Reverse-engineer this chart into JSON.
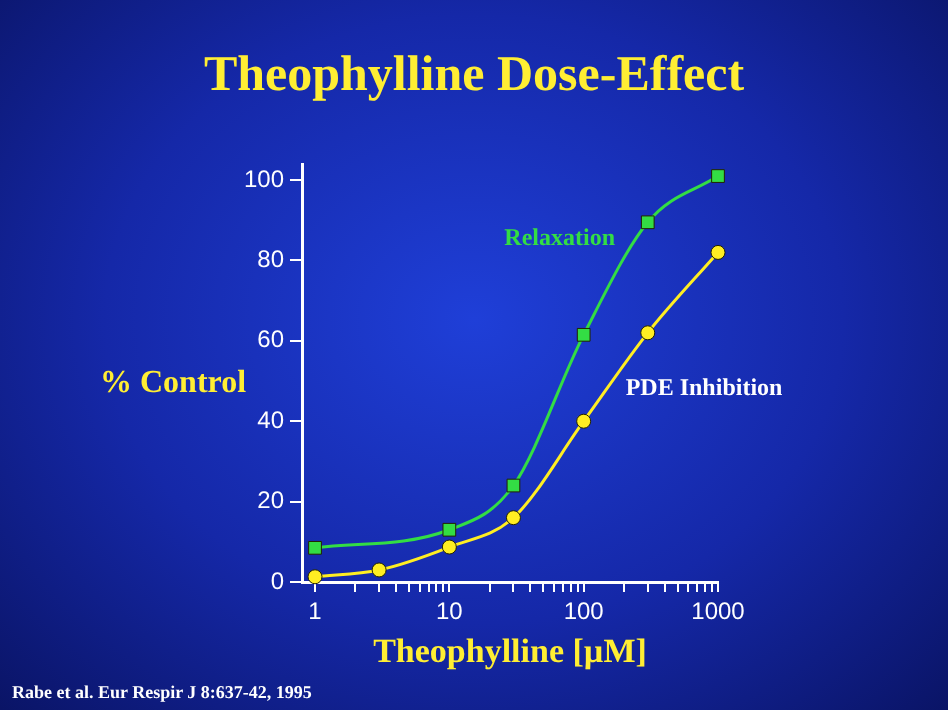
{
  "chart_data": {
    "type": "line",
    "title": "Theophylline Dose-Effect",
    "xlabel": "Theophylline [µM]",
    "ylabel": "% Control",
    "annotations": [
      "Rabe et al. Eur Respir J 8:637-42, 1995"
    ],
    "log": "x",
    "x": [
      1,
      3,
      10,
      30,
      100,
      300,
      1000
    ],
    "series": [
      {
        "name": "Relaxation",
        "color": "#33dd44",
        "marker": "square",
        "x": [
          1,
          10,
          30,
          100,
          300,
          1000
        ],
        "values": [
          8.5,
          13,
          24,
          61.5,
          89.5,
          101
        ]
      },
      {
        "name": "PDE Inhibition",
        "color": "#ffee22",
        "marker": "circle",
        "values": [
          1.3,
          3,
          8.7,
          16,
          40,
          62,
          82
        ]
      }
    ],
    "xlim": [
      0.8,
      1000
    ],
    "xticks": [
      1,
      {
        "value": 2,
        "label": null
      },
      {
        "value": 3,
        "label": null
      },
      {
        "value": 4,
        "label": null
      },
      {
        "value": 5,
        "label": null
      },
      {
        "value": 6,
        "label": null
      },
      {
        "value": 7,
        "label": null
      },
      {
        "value": 8,
        "label": null
      },
      {
        "value": 9,
        "label": null
      },
      10,
      {
        "value": 20,
        "label": null
      },
      {
        "value": 30,
        "label": null
      },
      {
        "value": 40,
        "label": null
      },
      {
        "value": 50,
        "label": null
      },
      {
        "value": 60,
        "label": null
      },
      {
        "value": 70,
        "label": null
      },
      {
        "value": 80,
        "label": null
      },
      {
        "value": 90,
        "label": null
      },
      100,
      {
        "value": 200,
        "label": null
      },
      {
        "value": 300,
        "label": null
      },
      {
        "value": 400,
        "label": null
      },
      {
        "value": 500,
        "label": null
      },
      {
        "value": 600,
        "label": null
      },
      {
        "value": 700,
        "label": null
      },
      {
        "value": 800,
        "label": null
      },
      {
        "value": 900,
        "label": null
      },
      1000
    ],
    "ylim": [
      0,
      104
    ],
    "yticks": [
      0,
      20,
      40,
      60,
      80,
      100
    ],
    "grid": false,
    "legend": false
  }
}
